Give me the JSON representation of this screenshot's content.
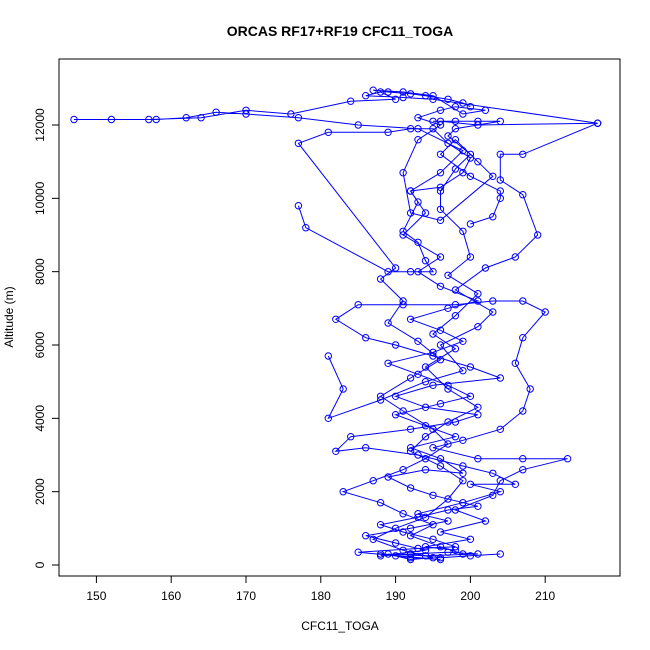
{
  "chart_data": {
    "type": "line",
    "title": "ORCAS RF17+RF19 CFC11_TOGA",
    "xlabel": "CFC11_TOGA",
    "ylabel": "Altitude (m)",
    "xlim": [
      145,
      220
    ],
    "ylim": [
      -300,
      13800
    ],
    "xticks": [
      150,
      160,
      170,
      180,
      190,
      200,
      210
    ],
    "yticks": [
      0,
      2000,
      4000,
      6000,
      8000,
      10000,
      12000
    ],
    "grid": false,
    "legend": "none",
    "series": [
      {
        "color": "#0000ff",
        "marker": "open-circle",
        "points": [
          [
            192,
            300
          ],
          [
            197,
            350
          ],
          [
            201,
            300
          ],
          [
            194,
            250
          ],
          [
            188,
            300
          ],
          [
            192,
            200
          ],
          [
            196,
            150
          ],
          [
            190,
            250
          ],
          [
            185,
            350
          ],
          [
            193,
            450
          ],
          [
            198,
            500
          ],
          [
            195,
            700
          ],
          [
            191,
            900
          ],
          [
            188,
            1100
          ],
          [
            193,
            1300
          ],
          [
            197,
            1500
          ],
          [
            201,
            1600
          ],
          [
            195,
            1900
          ],
          [
            192,
            2100
          ],
          [
            189,
            2400
          ],
          [
            194,
            2600
          ],
          [
            199,
            2500
          ],
          [
            196,
            2900
          ],
          [
            192,
            3200
          ],
          [
            198,
            3500
          ],
          [
            194,
            3800
          ],
          [
            190,
            4100
          ],
          [
            196,
            4400
          ],
          [
            200,
            4600
          ],
          [
            197,
            4900
          ],
          [
            193,
            5200
          ],
          [
            189,
            5500
          ],
          [
            195,
            5800
          ],
          [
            199,
            6100
          ],
          [
            196,
            6400
          ],
          [
            192,
            6700
          ],
          [
            197,
            7000
          ],
          [
            201,
            7200
          ],
          [
            196,
            7600
          ],
          [
            193,
            8000
          ],
          [
            196,
            8400
          ],
          [
            191,
            9000
          ],
          [
            194,
            9600
          ],
          [
            192,
            10200
          ],
          [
            196,
            10700
          ],
          [
            199,
            11300
          ],
          [
            193,
            11900
          ],
          [
            185,
            12000
          ],
          [
            177,
            12200
          ],
          [
            170,
            12300
          ],
          [
            166,
            12350
          ],
          [
            162,
            12200
          ],
          [
            158,
            12150
          ],
          [
            152,
            12150
          ],
          [
            147,
            12150
          ],
          [
            157,
            12150
          ],
          [
            164,
            12200
          ],
          [
            170,
            12400
          ],
          [
            176,
            12300
          ],
          [
            184,
            12650
          ],
          [
            190,
            12700
          ],
          [
            188,
            12900
          ],
          [
            186,
            12800
          ],
          [
            191,
            12750
          ],
          [
            195,
            12700
          ],
          [
            217,
            12050
          ],
          [
            201,
            12000
          ],
          [
            196,
            12100
          ]
        ]
      },
      {
        "color": "#0000ff",
        "marker": "open-circle",
        "points": [
          [
            204,
            300
          ],
          [
            200,
            250
          ],
          [
            196,
            200
          ],
          [
            192,
            300
          ],
          [
            188,
            250
          ],
          [
            194,
            400
          ],
          [
            190,
            600
          ],
          [
            186,
            800
          ],
          [
            192,
            1000
          ],
          [
            197,
            1200
          ],
          [
            193,
            1400
          ],
          [
            199,
            1700
          ],
          [
            204,
            2000
          ],
          [
            200,
            2200
          ],
          [
            206,
            2200
          ],
          [
            203,
            2500
          ],
          [
            199,
            2700
          ],
          [
            193,
            3000
          ],
          [
            186,
            3200
          ],
          [
            182,
            3100
          ],
          [
            184,
            3500
          ],
          [
            192,
            3700
          ],
          [
            198,
            3900
          ],
          [
            201,
            4100
          ],
          [
            194,
            4300
          ],
          [
            190,
            4600
          ],
          [
            195,
            4900
          ],
          [
            204,
            5100
          ],
          [
            200,
            5400
          ],
          [
            195,
            5700
          ],
          [
            190,
            6000
          ],
          [
            186,
            6200
          ],
          [
            182,
            6700
          ],
          [
            185,
            7100
          ],
          [
            191,
            7100
          ],
          [
            198,
            7100
          ],
          [
            203,
            7200
          ],
          [
            207,
            7200
          ],
          [
            210,
            6900
          ],
          [
            207,
            6200
          ],
          [
            206,
            5500
          ],
          [
            208,
            4800
          ],
          [
            207,
            4200
          ],
          [
            204,
            3700
          ],
          [
            199,
            3400
          ],
          [
            195,
            3200
          ],
          [
            201,
            2900
          ],
          [
            207,
            2900
          ],
          [
            213,
            2900
          ],
          [
            207,
            2600
          ],
          [
            204,
            2300
          ],
          [
            203,
            1900
          ],
          [
            198,
            1500
          ],
          [
            202,
            1200
          ],
          [
            196,
            900
          ],
          [
            200,
            700
          ],
          [
            194,
            500
          ],
          [
            198,
            400
          ]
        ]
      },
      {
        "color": "#0000ff",
        "marker": "open-circle",
        "points": [
          [
            181,
            5700
          ],
          [
            183,
            4800
          ],
          [
            181,
            4000
          ],
          [
            188,
            4500
          ],
          [
            194,
            5000
          ],
          [
            199,
            5300
          ],
          [
            196,
            6000
          ],
          [
            201,
            6500
          ],
          [
            203,
            6900
          ],
          [
            198,
            7500
          ],
          [
            202,
            8100
          ],
          [
            206,
            8400
          ],
          [
            209,
            9000
          ],
          [
            207,
            10100
          ],
          [
            204,
            10500
          ],
          [
            204,
            11200
          ],
          [
            207,
            11200
          ],
          [
            217,
            12050
          ]
        ]
      },
      {
        "color": "#0000ff",
        "marker": "open-circle",
        "points": [
          [
            177,
            9800
          ],
          [
            178,
            9200
          ],
          [
            189,
            8000
          ],
          [
            192,
            8000
          ],
          [
            195,
            8000
          ],
          [
            194,
            8300
          ],
          [
            193,
            8800
          ],
          [
            191,
            9100
          ],
          [
            193,
            9900
          ],
          [
            192,
            10200
          ],
          [
            196,
            10300
          ],
          [
            199,
            10700
          ],
          [
            200,
            11100
          ],
          [
            197,
            11500
          ],
          [
            195,
            11900
          ],
          [
            192,
            11900
          ],
          [
            189,
            11800
          ],
          [
            181,
            11800
          ],
          [
            177,
            11500
          ],
          [
            190,
            8100
          ],
          [
            188,
            7800
          ],
          [
            191,
            7200
          ],
          [
            189,
            6600
          ],
          [
            193,
            6100
          ],
          [
            196,
            5600
          ],
          [
            192,
            5100
          ],
          [
            188,
            4600
          ],
          [
            191,
            4200
          ],
          [
            195,
            3700
          ],
          [
            197,
            3300
          ],
          [
            194,
            2900
          ],
          [
            191,
            2600
          ],
          [
            187,
            2300
          ],
          [
            183,
            2000
          ],
          [
            188,
            1700
          ],
          [
            191,
            1400
          ],
          [
            195,
            1100
          ],
          [
            192,
            800
          ],
          [
            196,
            500
          ],
          [
            199,
            300
          ]
        ]
      },
      {
        "color": "#0000ff",
        "marker": "open-circle",
        "points": [
          [
            195,
            12100
          ],
          [
            198,
            12100
          ],
          [
            201,
            12100
          ],
          [
            204,
            12100
          ],
          [
            198,
            11900
          ],
          [
            197,
            11700
          ],
          [
            200,
            11200
          ],
          [
            198,
            10800
          ],
          [
            196,
            10200
          ],
          [
            196,
            9700
          ],
          [
            199,
            9100
          ],
          [
            200,
            8400
          ],
          [
            197,
            7900
          ],
          [
            201,
            7400
          ],
          [
            198,
            6800
          ],
          [
            195,
            6300
          ],
          [
            198,
            5900
          ],
          [
            194,
            5400
          ],
          [
            197,
            4800
          ],
          [
            201,
            4300
          ],
          [
            197,
            3900
          ],
          [
            194,
            3500
          ],
          [
            192,
            3100
          ],
          [
            196,
            2700
          ],
          [
            199,
            2300
          ],
          [
            197,
            1800
          ],
          [
            194,
            1300
          ],
          [
            190,
            1000
          ],
          [
            187,
            700
          ],
          [
            191,
            400
          ],
          [
            195,
            200
          ],
          [
            192,
            150
          ],
          [
            189,
            300
          ]
        ]
      },
      {
        "color": "#0000ff",
        "marker": "open-circle",
        "points": [
          [
            200,
            9300
          ],
          [
            203,
            9500
          ],
          [
            204,
            10000
          ],
          [
            204,
            10200
          ],
          [
            200,
            10600
          ],
          [
            196,
            11200
          ],
          [
            198,
            11600
          ],
          [
            201,
            11000
          ],
          [
            203,
            10600
          ],
          [
            196,
            9400
          ],
          [
            192,
            9600
          ],
          [
            191,
            10700
          ],
          [
            193,
            11600
          ],
          [
            196,
            12000
          ],
          [
            193,
            12200
          ],
          [
            196,
            12400
          ],
          [
            198,
            12500
          ],
          [
            202,
            12400
          ],
          [
            199,
            12300
          ],
          [
            195,
            12800
          ],
          [
            191,
            12900
          ],
          [
            187,
            12950
          ],
          [
            189,
            12900
          ],
          [
            192,
            12850
          ],
          [
            194,
            12800
          ],
          [
            197,
            12700
          ],
          [
            199,
            12600
          ],
          [
            200,
            12500
          ]
        ]
      }
    ]
  }
}
